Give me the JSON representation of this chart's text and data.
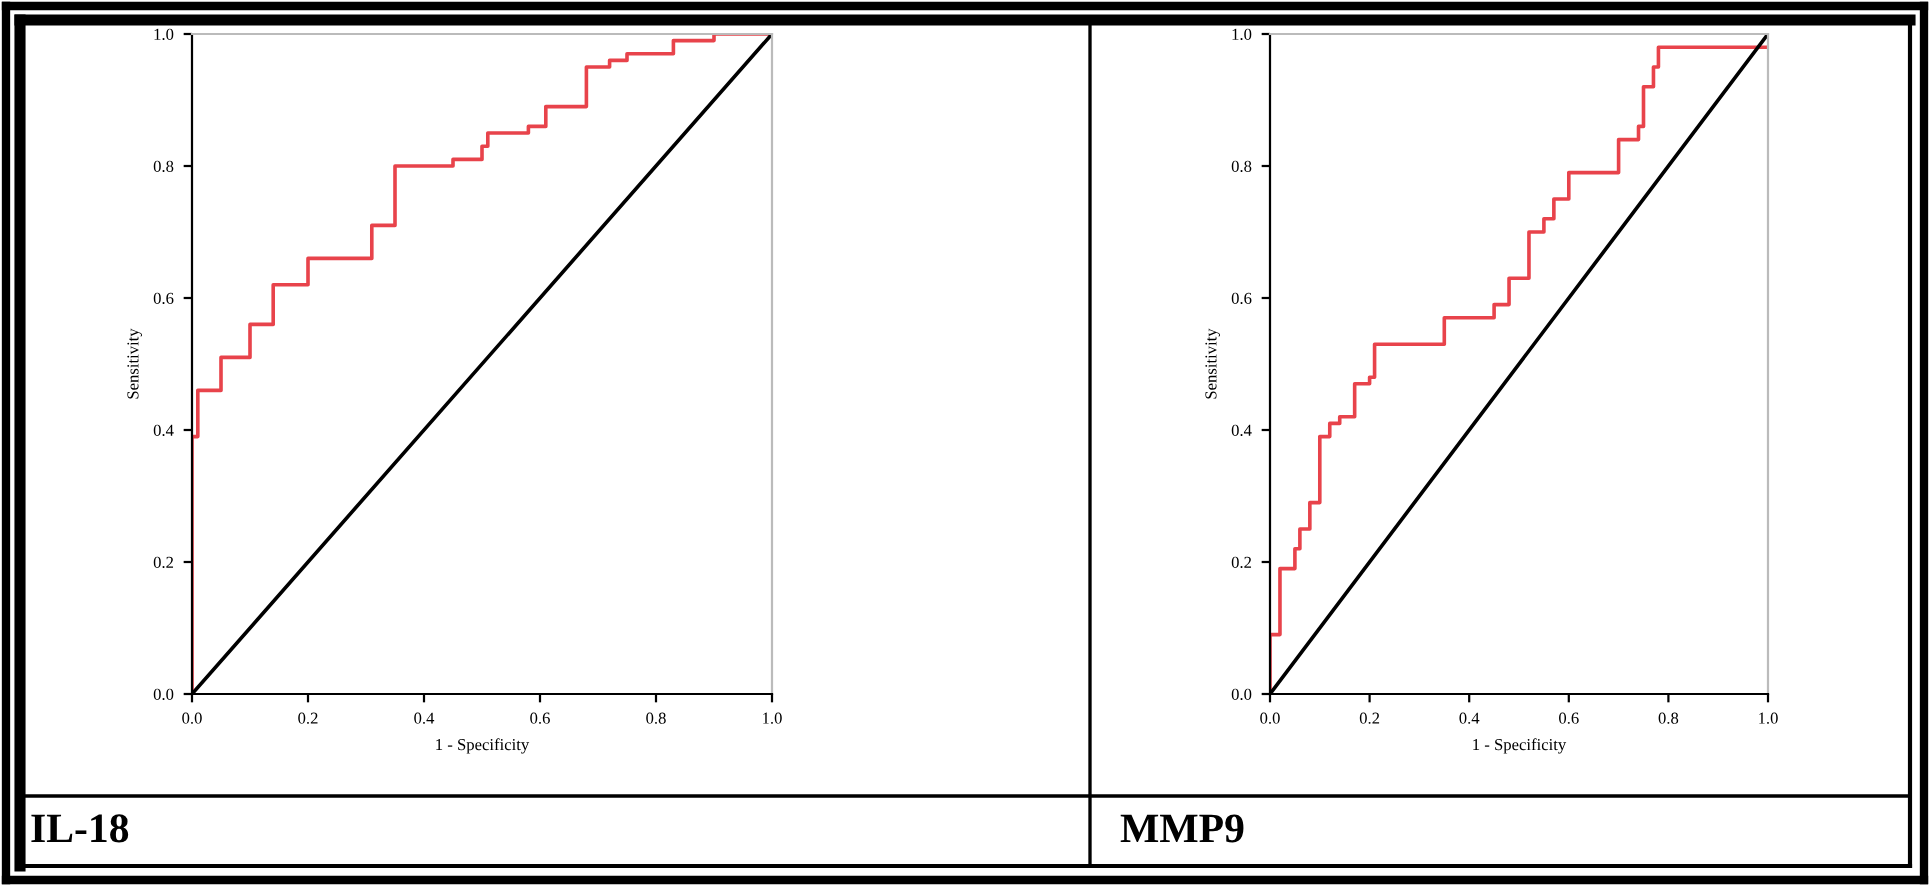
{
  "chart_data": [
    {
      "type": "step",
      "title": "IL-18",
      "xlabel": "1 - Specificity",
      "ylabel": "Sensitivity",
      "xlim": [
        0,
        1
      ],
      "ylim": [
        0,
        1
      ],
      "xticks": [
        {
          "value": 0,
          "label": "0.0"
        },
        {
          "value": 0.2,
          "label": "0.2"
        },
        {
          "value": 0.4,
          "label": "0.4"
        },
        {
          "value": 0.6,
          "label": "0.6"
        },
        {
          "value": 0.8,
          "label": "0.8"
        },
        {
          "value": 1,
          "label": "1.0"
        }
      ],
      "yticks": [
        {
          "value": 0,
          "label": "0.0"
        },
        {
          "value": 0.2,
          "label": "0.2"
        },
        {
          "value": 0.4,
          "label": "0.4"
        },
        {
          "value": 0.6,
          "label": "0.6"
        },
        {
          "value": 0.8,
          "label": "0.8"
        },
        {
          "value": 1,
          "label": "1.0"
        }
      ],
      "grid": false,
      "legend": false,
      "series": [
        {
          "color": "#e8434b",
          "x": [
            0,
            0,
            0.01,
            0.05,
            0.1,
            0.14,
            0.2,
            0.31,
            0.35,
            0.45,
            0.5,
            0.51,
            0.58,
            0.61,
            0.68,
            0.72,
            0.75,
            0.83,
            0.9,
            1.0
          ],
          "values": [
            0,
            0.39,
            0.46,
            0.51,
            0.56,
            0.62,
            0.66,
            0.71,
            0.8,
            0.81,
            0.83,
            0.85,
            0.86,
            0.89,
            0.95,
            0.96,
            0.97,
            0.99,
            1.0,
            1.0
          ]
        },
        {
          "type": "line",
          "color": "#000000",
          "x": [
            0,
            1
          ],
          "values": [
            0,
            1
          ]
        }
      ]
    },
    {
      "type": "step",
      "title": "MMP9",
      "xlabel": "1 - Specificity",
      "ylabel": "Sensitivity",
      "xlim": [
        0,
        1
      ],
      "ylim": [
        0,
        1
      ],
      "xticks": [
        {
          "value": 0,
          "label": "0.0"
        },
        {
          "value": 0.2,
          "label": "0.2"
        },
        {
          "value": 0.4,
          "label": "0.4"
        },
        {
          "value": 0.6,
          "label": "0.6"
        },
        {
          "value": 0.8,
          "label": "0.8"
        },
        {
          "value": 1,
          "label": "1.0"
        }
      ],
      "yticks": [
        {
          "value": 0,
          "label": "0.0"
        },
        {
          "value": 0.2,
          "label": "0.2"
        },
        {
          "value": 0.4,
          "label": "0.4"
        },
        {
          "value": 0.6,
          "label": "0.6"
        },
        {
          "value": 0.8,
          "label": "0.8"
        },
        {
          "value": 1,
          "label": "1.0"
        }
      ],
      "grid": false,
      "legend": false,
      "series": [
        {
          "color": "#e8434b",
          "x": [
            0,
            0,
            0.02,
            0.05,
            0.06,
            0.08,
            0.1,
            0.12,
            0.14,
            0.17,
            0.2,
            0.21,
            0.35,
            0.45,
            0.48,
            0.52,
            0.55,
            0.57,
            0.6,
            0.7,
            0.74,
            0.75,
            0.77,
            0.78,
            1.0
          ],
          "values": [
            0,
            0.09,
            0.19,
            0.22,
            0.25,
            0.29,
            0.39,
            0.41,
            0.42,
            0.47,
            0.48,
            0.53,
            0.57,
            0.59,
            0.63,
            0.7,
            0.72,
            0.75,
            0.79,
            0.84,
            0.86,
            0.92,
            0.95,
            0.98,
            0.98
          ]
        },
        {
          "type": "line",
          "color": "#000000",
          "x": [
            0,
            1
          ],
          "values": [
            0,
            1
          ]
        }
      ]
    }
  ]
}
